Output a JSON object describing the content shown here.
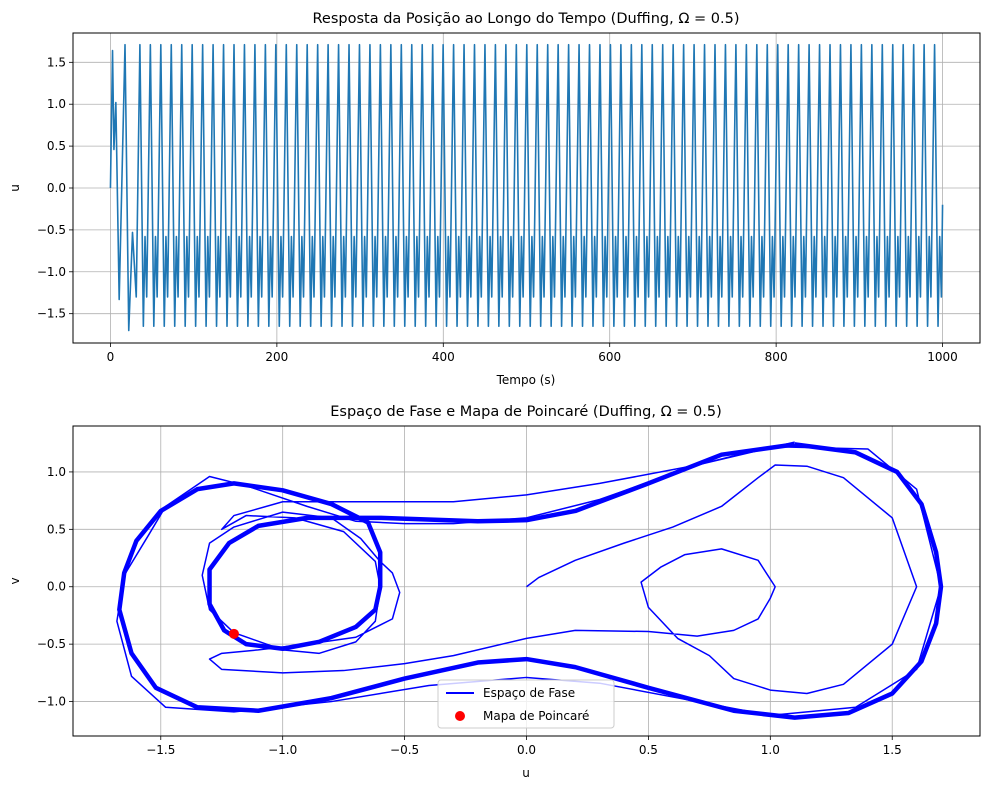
{
  "chart_data": [
    {
      "type": "line",
      "title": "Resposta da Posição ao Longo do Tempo (Duffing, Ω = 0.5)",
      "xlabel": "Tempo (s)",
      "ylabel": "u",
      "xlim": [
        -45,
        1045
      ],
      "ylim": [
        -1.85,
        1.85
      ],
      "xticks": [
        0,
        200,
        400,
        600,
        800,
        1000
      ],
      "xtick_labels": [
        "0",
        "200",
        "400",
        "600",
        "800",
        "1000"
      ],
      "yticks": [
        -1.5,
        -1.0,
        -0.5,
        0.0,
        0.5,
        1.0,
        1.5
      ],
      "ytick_labels": [
        "−1.5",
        "−1.0",
        "−0.5",
        "0.0",
        "0.5",
        "1.0",
        "1.5"
      ],
      "grid": true,
      "series": [
        {
          "color": "#1f77b4",
          "t_range": [
            0,
            1000
          ],
          "period_s": 12.566,
          "steady_peaks": [
            1.71,
            -0.58
          ],
          "steady_troughs": [
            -1.65,
            -1.3
          ],
          "transient_points": [
            [
              0,
              0.0
            ],
            [
              2.5,
              1.64
            ],
            [
              4.2,
              0.46
            ],
            [
              6.5,
              1.02
            ],
            [
              10.5,
              -1.33
            ],
            [
              17.5,
              1.71
            ],
            [
              22,
              -1.7
            ],
            [
              26.5,
              -0.53
            ],
            [
              31,
              -1.3
            ]
          ]
        }
      ]
    },
    {
      "type": "scatter",
      "title": "Espaço de Fase e Mapa de Poincaré (Duffing, Ω = 0.5)",
      "xlabel": "u",
      "ylabel": "v",
      "xlim": [
        -1.86,
        1.86
      ],
      "ylim": [
        -1.3,
        1.4
      ],
      "xticks": [
        -1.5,
        -1.0,
        -0.5,
        0.0,
        0.5,
        1.0,
        1.5
      ],
      "xtick_labels": [
        "−1.5",
        "−1.0",
        "−0.5",
        "0.0",
        "0.5",
        "1.0",
        "1.5"
      ],
      "yticks": [
        -1.0,
        -0.5,
        0.0,
        0.5,
        1.0
      ],
      "ytick_labels": [
        "−1.0",
        "−0.5",
        "0.0",
        "0.5",
        "1.0"
      ],
      "grid": true,
      "legend_position": "lower center",
      "series": [
        {
          "name": "Espaço de Fase",
          "type": "line",
          "color": "#0000ff",
          "paths": [
            [
              [
                0.0,
                0.0
              ],
              [
                0.05,
                0.08
              ],
              [
                0.2,
                0.23
              ],
              [
                0.4,
                0.38
              ],
              [
                0.6,
                0.52
              ],
              [
                0.8,
                0.7
              ],
              [
                0.95,
                0.95
              ],
              [
                1.02,
                1.06
              ],
              [
                1.15,
                1.05
              ],
              [
                1.3,
                0.95
              ],
              [
                1.5,
                0.6
              ],
              [
                1.6,
                0.0
              ],
              [
                1.5,
                -0.5
              ],
              [
                1.3,
                -0.85
              ],
              [
                1.15,
                -0.93
              ],
              [
                1.0,
                -0.9
              ],
              [
                0.85,
                -0.8
              ],
              [
                0.75,
                -0.6
              ],
              [
                0.62,
                -0.45
              ],
              [
                0.5,
                -0.18
              ],
              [
                0.47,
                0.04
              ],
              [
                0.55,
                0.17
              ],
              [
                0.65,
                0.28
              ],
              [
                0.8,
                0.33
              ],
              [
                0.95,
                0.23
              ],
              [
                1.02,
                0.0
              ],
              [
                1.0,
                -0.1
              ],
              [
                0.95,
                -0.28
              ],
              [
                0.85,
                -0.38
              ],
              [
                0.7,
                -0.43
              ],
              [
                0.5,
                -0.39
              ],
              [
                0.2,
                -0.38
              ],
              [
                0.0,
                -0.45
              ],
              [
                -0.3,
                -0.6
              ],
              [
                -0.5,
                -0.67
              ],
              [
                -0.75,
                -0.73
              ],
              [
                -1.0,
                -0.75
              ],
              [
                -1.25,
                -0.72
              ],
              [
                -1.3,
                -0.63
              ],
              [
                -1.25,
                -0.58
              ],
              [
                -1.1,
                -0.55
              ],
              [
                -0.9,
                -0.5
              ],
              [
                -0.7,
                -0.44
              ],
              [
                -0.55,
                -0.28
              ],
              [
                -0.52,
                -0.05
              ],
              [
                -0.55,
                0.12
              ],
              [
                -0.6,
                0.22
              ],
              [
                -0.68,
                0.42
              ],
              [
                -0.8,
                0.6
              ],
              [
                -1.0,
                0.65
              ],
              [
                -1.2,
                0.52
              ],
              [
                -1.3,
                0.38
              ],
              [
                -1.33,
                0.1
              ],
              [
                -1.3,
                -0.2
              ],
              [
                -1.2,
                -0.4
              ],
              [
                -1.0,
                -0.55
              ],
              [
                -0.85,
                -0.58
              ],
              [
                -0.7,
                -0.48
              ],
              [
                -0.62,
                -0.3
              ],
              [
                -0.6,
                0.0
              ],
              [
                -0.62,
                0.22
              ],
              [
                -0.75,
                0.48
              ],
              [
                -0.95,
                0.6
              ],
              [
                -1.15,
                0.62
              ],
              [
                -1.25,
                0.5
              ],
              [
                -1.2,
                0.62
              ],
              [
                -1.0,
                0.74
              ],
              [
                -0.7,
                0.74
              ],
              [
                -0.3,
                0.74
              ],
              [
                0.0,
                0.8
              ],
              [
                0.3,
                0.9
              ],
              [
                0.7,
                1.06
              ],
              [
                1.0,
                1.22
              ],
              [
                1.4,
                1.2
              ],
              [
                1.6,
                0.85
              ],
              [
                1.7,
                0.0
              ],
              [
                1.6,
                -0.72
              ],
              [
                1.35,
                -1.05
              ],
              [
                1.0,
                -1.12
              ],
              [
                0.7,
                -1.0
              ],
              [
                0.3,
                -0.84
              ],
              [
                0.0,
                -0.79
              ],
              [
                -0.4,
                -0.86
              ],
              [
                -0.8,
                -1.0
              ],
              [
                -1.2,
                -1.09
              ],
              [
                -1.48,
                -1.05
              ],
              [
                -1.62,
                -0.78
              ],
              [
                -1.68,
                -0.3
              ],
              [
                -1.65,
                0.1
              ],
              [
                -1.55,
                0.45
              ],
              [
                -1.48,
                0.7
              ],
              [
                -1.3,
                0.96
              ],
              [
                -1.15,
                0.88
              ],
              [
                -0.9,
                0.7
              ],
              [
                -0.7,
                0.57
              ],
              [
                -0.5,
                0.55
              ],
              [
                -0.3,
                0.55
              ],
              [
                0.0,
                0.6
              ],
              [
                0.3,
                0.76
              ],
              [
                0.7,
                1.06
              ],
              [
                1.1,
                1.26
              ]
            ],
            [
              [
                1.1,
                1.24
              ],
              [
                1.35,
                1.17
              ],
              [
                1.52,
                1.0
              ],
              [
                1.62,
                0.72
              ],
              [
                1.68,
                0.3
              ],
              [
                1.7,
                0.0
              ],
              [
                1.68,
                -0.32
              ],
              [
                1.62,
                -0.65
              ],
              [
                1.5,
                -0.93
              ],
              [
                1.32,
                -1.1
              ],
              [
                1.1,
                -1.14
              ],
              [
                0.85,
                -1.08
              ],
              [
                0.5,
                -0.88
              ],
              [
                0.2,
                -0.7
              ],
              [
                0.0,
                -0.63
              ],
              [
                -0.2,
                -0.66
              ],
              [
                -0.5,
                -0.8
              ],
              [
                -0.8,
                -0.97
              ],
              [
                -1.1,
                -1.08
              ],
              [
                -1.35,
                -1.05
              ],
              [
                -1.52,
                -0.88
              ],
              [
                -1.62,
                -0.58
              ],
              [
                -1.67,
                -0.2
              ],
              [
                -1.65,
                0.12
              ],
              [
                -1.6,
                0.4
              ],
              [
                -1.5,
                0.66
              ],
              [
                -1.35,
                0.85
              ],
              [
                -1.2,
                0.9
              ],
              [
                -1.0,
                0.84
              ],
              [
                -0.8,
                0.72
              ],
              [
                -0.65,
                0.56
              ],
              [
                -0.6,
                0.3
              ],
              [
                -0.6,
                0.0
              ],
              [
                -0.62,
                -0.2
              ],
              [
                -0.7,
                -0.35
              ],
              [
                -0.85,
                -0.48
              ],
              [
                -1.0,
                -0.54
              ],
              [
                -1.15,
                -0.5
              ],
              [
                -1.24,
                -0.38
              ],
              [
                -1.3,
                -0.15
              ],
              [
                -1.3,
                0.15
              ],
              [
                -1.22,
                0.38
              ],
              [
                -1.1,
                0.53
              ],
              [
                -0.9,
                0.6
              ],
              [
                -0.6,
                0.6
              ],
              [
                -0.2,
                0.57
              ],
              [
                0.0,
                0.58
              ],
              [
                0.2,
                0.66
              ],
              [
                0.5,
                0.9
              ],
              [
                0.8,
                1.15
              ],
              [
                1.1,
                1.24
              ]
            ]
          ],
          "linewidth_repeat": 3
        },
        {
          "name": "Mapa de Poincaré",
          "type": "scatter",
          "color": "#ff0000",
          "points": [
            [
              -1.2,
              -0.41
            ]
          ]
        }
      ]
    }
  ]
}
